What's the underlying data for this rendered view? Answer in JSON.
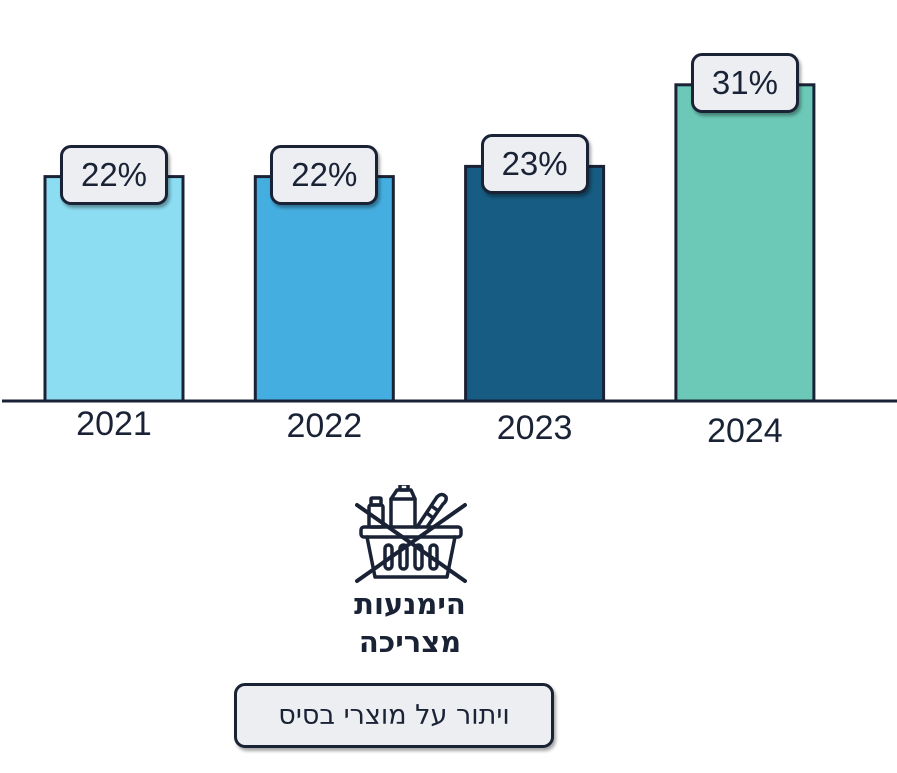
{
  "chart_data": {
    "type": "bar",
    "categories": [
      "2021",
      "2022",
      "2023",
      "2024"
    ],
    "values": [
      22,
      22,
      23,
      31
    ],
    "value_labels": [
      "22%",
      "22%",
      "23%",
      "31%"
    ],
    "unit": "%",
    "title": "",
    "xlabel": "",
    "ylabel": "",
    "ylim": [
      0,
      33
    ],
    "grid": false,
    "bar_colors": [
      "#8dddf2",
      "#45aee0",
      "#175c82",
      "#6cc9b7"
    ],
    "outline_color": "#1a2236"
  },
  "category": {
    "icon": "crossed-out-shopping-basket-icon",
    "title_line1": "הימנעות",
    "title_line2": "מצריכה",
    "subtitle": "ויתור על מוצרי בסיס"
  }
}
